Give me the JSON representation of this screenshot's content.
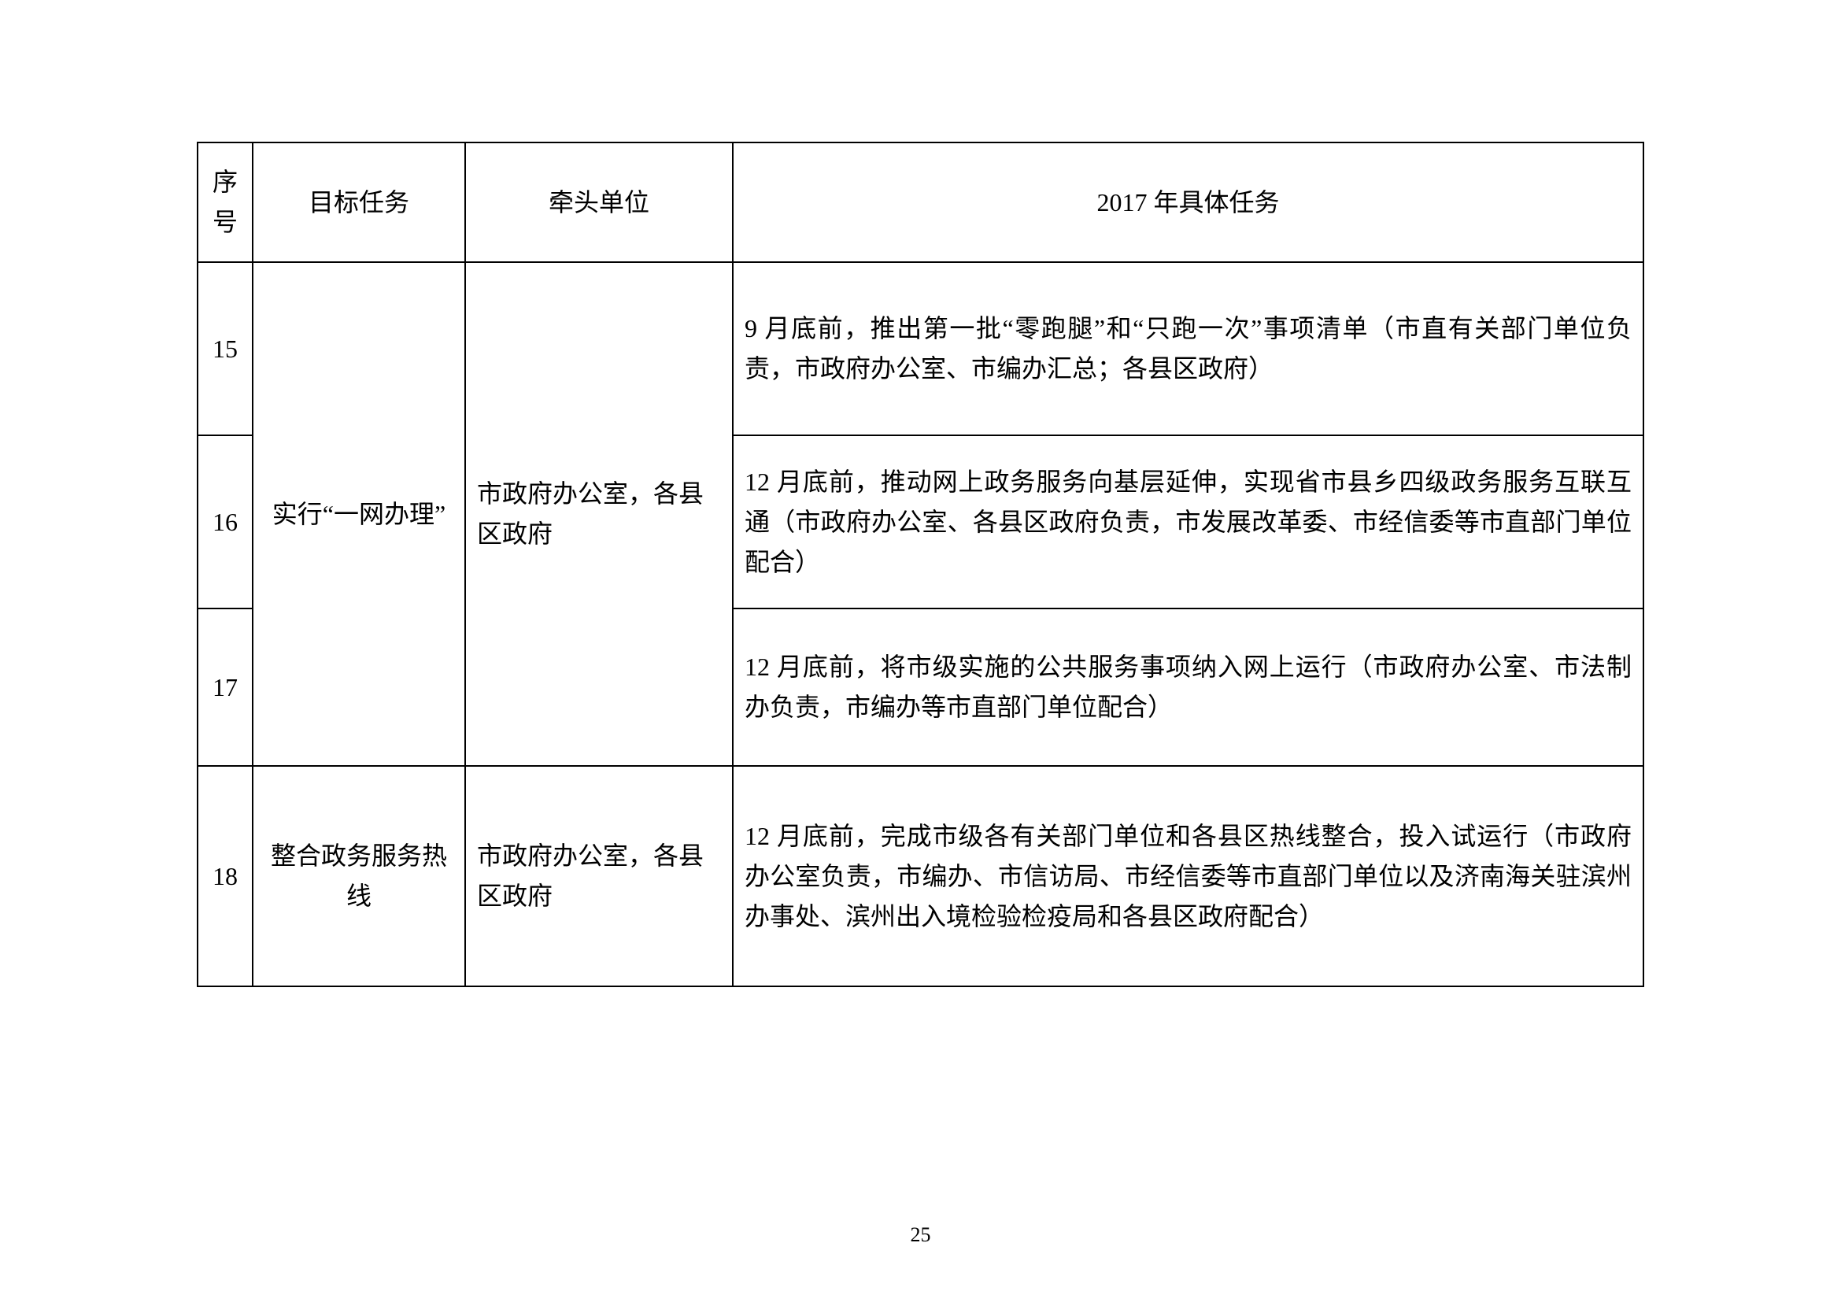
{
  "table": {
    "headers": {
      "num": "序号",
      "task": "目标任务",
      "lead": "牵头单位",
      "detail": "2017 年具体任务"
    },
    "rows": [
      {
        "num": "15",
        "task": "实行“一网办理”",
        "lead": "市政府办公室，各县区政府",
        "detail": "9 月底前，推出第一批“零跑腿”和“只跑一次”事项清单（市直有关部门单位负责，市政府办公室、市编办汇总；各县区政府）"
      },
      {
        "num": "16",
        "detail": "12 月底前，推动网上政务服务向基层延伸，实现省市县乡四级政务服务互联互通（市政府办公室、各县区政府负责，市发展改革委、市经信委等市直部门单位配合）"
      },
      {
        "num": "17",
        "detail": "12 月底前，将市级实施的公共服务事项纳入网上运行（市政府办公室、市法制办负责，市编办等市直部门单位配合）"
      },
      {
        "num": "18",
        "task": "整合政务服务热线",
        "lead": "市政府办公室，各县区政府",
        "detail": "12 月底前，完成市级各有关部门单位和各县区热线整合，投入试运行（市政府办公室负责，市编办、市信访局、市经信委等市直部门单位以及济南海关驻滨州办事处、滨州出入境检验检疫局和各县区政府配合）"
      }
    ]
  },
  "page_number": "25"
}
